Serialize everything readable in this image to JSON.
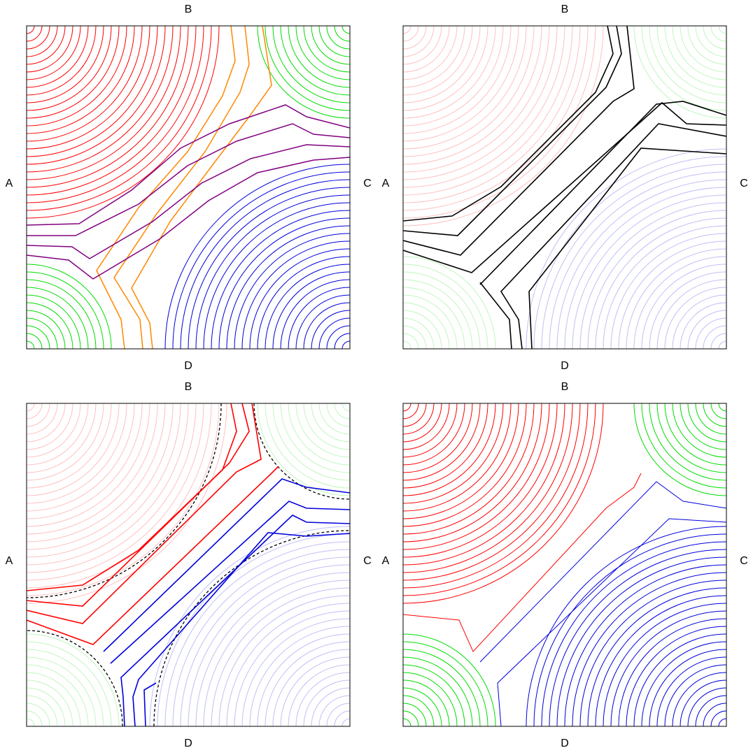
{
  "panels": [
    {
      "top": "B",
      "left": "A",
      "right": "C",
      "bottom": "D"
    },
    {
      "top": "B",
      "left": "A",
      "right": "C",
      "bottom": "D"
    },
    {
      "top": "B",
      "left": "A",
      "right": "C",
      "bottom": "D"
    },
    {
      "top": "B",
      "left": "A",
      "right": "C",
      "bottom": "D"
    }
  ]
}
